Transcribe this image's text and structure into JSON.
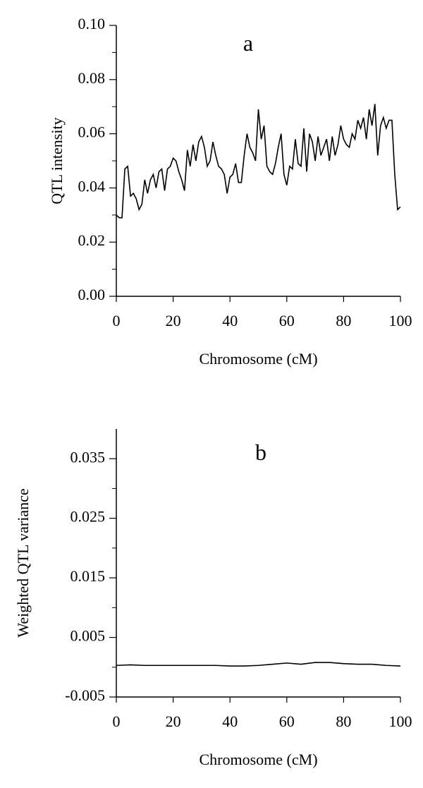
{
  "chart_data": [
    {
      "type": "line",
      "annotation": "a",
      "x_label": "Chromosome (cM)",
      "y_label": "QTL intensity",
      "xlim": [
        0,
        100
      ],
      "xticks": [
        0,
        20,
        40,
        60,
        80,
        100
      ],
      "ylim": [
        0,
        0.1
      ],
      "yticks": [
        {
          "value": 0,
          "label": "0.00"
        },
        0.02,
        0.04,
        0.06,
        0.08,
        {
          "value": 0.1,
          "label": "0.10"
        }
      ],
      "yminorticks": [
        0.01,
        0.03,
        0.05,
        0.07,
        0.09
      ],
      "grid": false,
      "color": "#000000",
      "x": [
        0,
        1,
        2,
        3,
        4,
        5,
        6,
        7,
        8,
        9,
        10,
        11,
        12,
        13,
        14,
        15,
        16,
        17,
        18,
        19,
        20,
        21,
        22,
        23,
        24,
        25,
        26,
        27,
        28,
        29,
        30,
        31,
        32,
        33,
        34,
        35,
        36,
        37,
        38,
        39,
        40,
        41,
        42,
        43,
        44,
        45,
        46,
        47,
        48,
        49,
        50,
        51,
        52,
        53,
        54,
        55,
        56,
        57,
        58,
        59,
        60,
        61,
        62,
        63,
        64,
        65,
        66,
        67,
        68,
        69,
        70,
        71,
        72,
        73,
        74,
        75,
        76,
        77,
        78,
        79,
        80,
        81,
        82,
        83,
        84,
        85,
        86,
        87,
        88,
        89,
        90,
        91,
        92,
        93,
        94,
        95,
        96,
        97,
        98,
        99,
        100
      ],
      "values": [
        0.03,
        0.029,
        0.029,
        0.047,
        0.048,
        0.037,
        0.038,
        0.036,
        0.032,
        0.034,
        0.043,
        0.038,
        0.043,
        0.045,
        0.04,
        0.046,
        0.047,
        0.039,
        0.047,
        0.048,
        0.051,
        0.05,
        0.046,
        0.043,
        0.039,
        0.054,
        0.048,
        0.056,
        0.05,
        0.057,
        0.059,
        0.055,
        0.048,
        0.05,
        0.057,
        0.052,
        0.048,
        0.047,
        0.045,
        0.038,
        0.044,
        0.045,
        0.049,
        0.042,
        0.042,
        0.052,
        0.06,
        0.055,
        0.053,
        0.05,
        0.069,
        0.058,
        0.063,
        0.048,
        0.046,
        0.045,
        0.049,
        0.055,
        0.06,
        0.045,
        0.041,
        0.048,
        0.047,
        0.058,
        0.049,
        0.048,
        0.062,
        0.046,
        0.06,
        0.057,
        0.05,
        0.059,
        0.052,
        0.055,
        0.058,
        0.05,
        0.059,
        0.052,
        0.056,
        0.063,
        0.058,
        0.056,
        0.055,
        0.06,
        0.058,
        0.065,
        0.062,
        0.066,
        0.058,
        0.069,
        0.063,
        0.071,
        0.052,
        0.063,
        0.066,
        0.062,
        0.065,
        0.065,
        0.045,
        0.032,
        0.033
      ]
    },
    {
      "type": "line",
      "annotation": "b",
      "x_label": "Chromosome (cM)",
      "y_label": "Weighted QTL variance",
      "xlim": [
        0,
        100
      ],
      "xticks": [
        0,
        20,
        40,
        60,
        80,
        100
      ],
      "ylim": [
        -0.005,
        0.04
      ],
      "yticks": [
        -0.005,
        0.005,
        0.015,
        0.025,
        0.035
      ],
      "yminorticks": [
        0,
        0.01,
        0.02,
        0.03
      ],
      "grid": false,
      "color": "#000000",
      "x": [
        0,
        5,
        10,
        15,
        20,
        25,
        30,
        35,
        40,
        45,
        50,
        55,
        60,
        65,
        70,
        75,
        80,
        85,
        90,
        95,
        100
      ],
      "values": [
        0.0003,
        0.0004,
        0.0003,
        0.0003,
        0.0003,
        0.0003,
        0.0003,
        0.0003,
        0.0002,
        0.0002,
        0.0003,
        0.0005,
        0.0007,
        0.0005,
        0.0008,
        0.0008,
        0.0006,
        0.0005,
        0.0005,
        0.0003,
        0.0002
      ]
    }
  ]
}
